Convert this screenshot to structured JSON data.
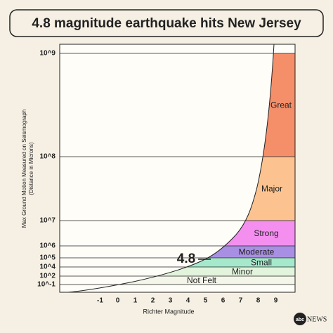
{
  "chart_data": {
    "type": "band",
    "title": "4.8 magnitude earthquake hits New Jersey",
    "x_label": "Richter Magnitude",
    "y_label": [
      "Max Ground Motion Measured on Seismograph",
      "(Distance in Microns)"
    ],
    "annotation": "4.8",
    "logo": "abc",
    "logo_text": "NEWS",
    "xlim": [
      -3.3,
      10.1
    ],
    "xticks": [
      -1,
      0,
      1,
      2,
      3,
      4,
      5,
      6,
      7,
      8,
      9
    ],
    "ylim": [
      0.01,
      10000000000
    ],
    "log_y": true,
    "yticks": [
      {
        "value": 0.1,
        "label": "10^-1"
      },
      {
        "value": 100,
        "label": "10^2"
      },
      {
        "value": 10000,
        "label": "10^4"
      },
      {
        "value": 100000,
        "label": "10^5"
      },
      {
        "value": 1000000,
        "label": "10^6"
      },
      {
        "value": 10000000,
        "label": "10^7"
      },
      {
        "value": 100000000,
        "label": "10^8"
      },
      {
        "value": 1000000000,
        "label": "10^9"
      }
    ],
    "bands": [
      {
        "name": "Not Felt",
        "color": "#f3f6e9",
        "range": [
          0.1,
          100
        ]
      },
      {
        "name": "Minor",
        "color": "#e2f4dc",
        "range": [
          100,
          10000
        ]
      },
      {
        "name": "Small",
        "color": "#a6e8cc",
        "range": [
          10000,
          100000
        ]
      },
      {
        "name": "Moderate",
        "color": "#a98fe3",
        "range": [
          100000,
          1000000
        ]
      },
      {
        "name": "Strong",
        "color": "#f48ff0",
        "range": [
          1000000,
          10000000
        ]
      },
      {
        "name": "Major",
        "color": "#fcc390",
        "range": [
          10000000,
          100000000
        ]
      },
      {
        "name": "Great",
        "color": "#f48f6a",
        "range": [
          100000000,
          1000000000
        ]
      }
    ]
  }
}
